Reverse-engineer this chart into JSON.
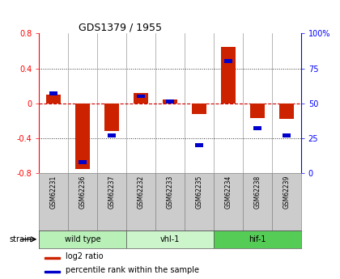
{
  "title": "GDS1379 / 1955",
  "samples": [
    "GSM62231",
    "GSM62236",
    "GSM62237",
    "GSM62232",
    "GSM62233",
    "GSM62235",
    "GSM62234",
    "GSM62238",
    "GSM62239"
  ],
  "log2_ratio": [
    0.1,
    -0.75,
    -0.32,
    0.12,
    0.04,
    -0.12,
    0.65,
    -0.17,
    -0.18
  ],
  "pct_rank": [
    57,
    8,
    27,
    55,
    51,
    20,
    80,
    32,
    27
  ],
  "groups": [
    {
      "label": "wild type",
      "start": 0,
      "end": 3,
      "color": "#b8f0b8"
    },
    {
      "label": "vhl-1",
      "start": 3,
      "end": 6,
      "color": "#ccf5cc"
    },
    {
      "label": "hif-1",
      "start": 6,
      "end": 9,
      "color": "#55cc55"
    }
  ],
  "ylim_left": [
    -0.8,
    0.8
  ],
  "yticks_left": [
    -0.8,
    -0.4,
    0.0,
    0.4,
    0.8
  ],
  "ylim_right": [
    0,
    100
  ],
  "yticks_right": [
    0,
    25,
    50,
    75,
    100
  ],
  "yticklabels_right": [
    "0",
    "25",
    "50",
    "75",
    "100%"
  ],
  "bar_color_red": "#cc2200",
  "bar_color_blue": "#0000cc",
  "zero_line_color": "#cc0000",
  "background_color": "#ffffff"
}
